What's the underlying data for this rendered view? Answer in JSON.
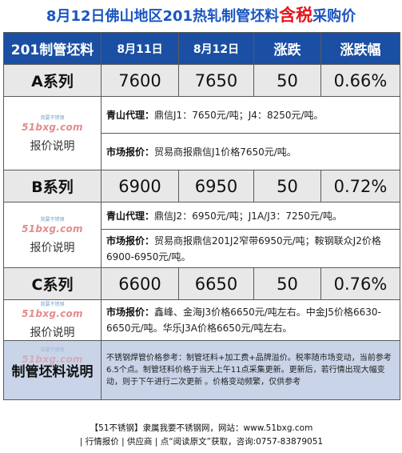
{
  "title": {
    "main": "8月12日佛山地区201热轧制管坯料",
    "highlight": "含税",
    "suffix": "采购价"
  },
  "table": {
    "headers": [
      "201制管坯料",
      "8月11日",
      "8月12日",
      "涨跌",
      "涨跌幅"
    ],
    "price_note_label": "报价说明",
    "watermark": {
      "top": "我要不锈钢",
      "logo": "51bxg.com"
    },
    "rows": [
      {
        "name": "A系列",
        "prev": "7600",
        "curr": "7650",
        "change": "50",
        "pct": "0.66%",
        "notes": [
          {
            "label": "青山代理：",
            "text": "鼎信J1：7650元/吨；J4：8250元/吨。"
          },
          {
            "label": "市场报价：",
            "text": "贸易商报鼎信J1价格7650元/吨。"
          }
        ]
      },
      {
        "name": "B系列",
        "prev": "6900",
        "curr": "6950",
        "change": "50",
        "pct": "0.72%",
        "notes": [
          {
            "label": "青山代理：",
            "text": "鼎信J2：6950元/吨；J1A/J3：7250元/吨。"
          },
          {
            "label": "市场报价：",
            "text": "贸易商报鼎信201J2窄带6950元/吨；鞍钢联众J2价格6900-6950元/吨。"
          }
        ]
      },
      {
        "name": "C系列",
        "prev": "6600",
        "curr": "6650",
        "change": "50",
        "pct": "0.76%",
        "notes": [
          {
            "label": "市场报价：",
            "text": "鑫峰、金海J3价格6650元/吨左右。中金J5价格6630-6650元/吨。华乐J3A价格6650元/吨左右。"
          }
        ]
      }
    ],
    "footnote": {
      "label": "制管坯料说明",
      "text": "不锈钢焊管价格参考：制管坯料+加工费+品牌溢价。税率随市场变动，当前参考6.5个点。制管坯料价格于当天上午11点采集更新。更新后，若行情出现大幅变动，则于下午进行二次更新 。价格变动频繁，仅供参考"
    }
  },
  "footer": {
    "line1": "【51不锈钢】隶属我要不锈钢网，网站：www.51bxg.com",
    "line2": "| 行情报价 | 供应商 | 点“阅读原文”获取，咨询:0757-83879051"
  }
}
